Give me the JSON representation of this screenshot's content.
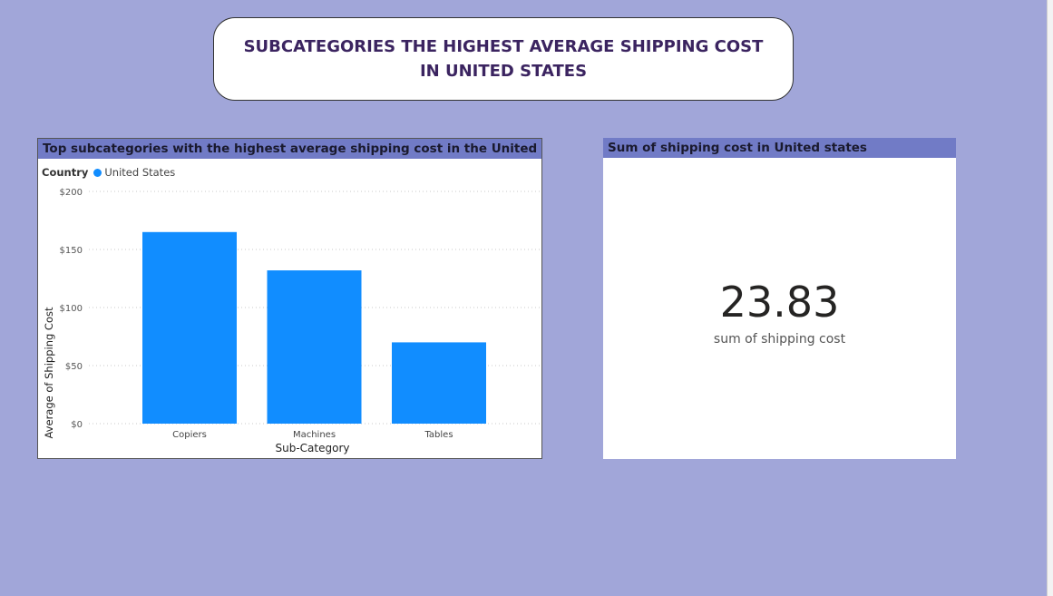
{
  "page_title": "SUBCATEGORIES THE HIGHEST AVERAGE SHIPPING COST IN UNITED STATES",
  "chart_panel": {
    "header": "Top subcategories with the highest average shipping cost in the United States",
    "legend_title": "Country",
    "legend_item": "United States"
  },
  "card_panel": {
    "header": "Sum of shipping cost in United states",
    "value": "23.83",
    "label": "sum of shipping cost"
  },
  "colors": {
    "background": "#a1a6d9",
    "header_bar": "#717bc6",
    "bar": "#118dff",
    "title_text": "#3b2460"
  },
  "chart_data": {
    "type": "bar",
    "categories": [
      "Copiers",
      "Machines",
      "Tables"
    ],
    "series": [
      {
        "name": "United States",
        "values": [
          165,
          132,
          70
        ]
      }
    ],
    "xlabel": "Sub-Category",
    "ylabel": "Average of Shipping Cost",
    "ylim": [
      0,
      200
    ],
    "yticks": [
      "$0",
      "$50",
      "$100",
      "$150",
      "$200"
    ],
    "ytick_values": [
      0,
      50,
      100,
      150,
      200
    ],
    "grid": true,
    "legend_position": "top-left"
  }
}
